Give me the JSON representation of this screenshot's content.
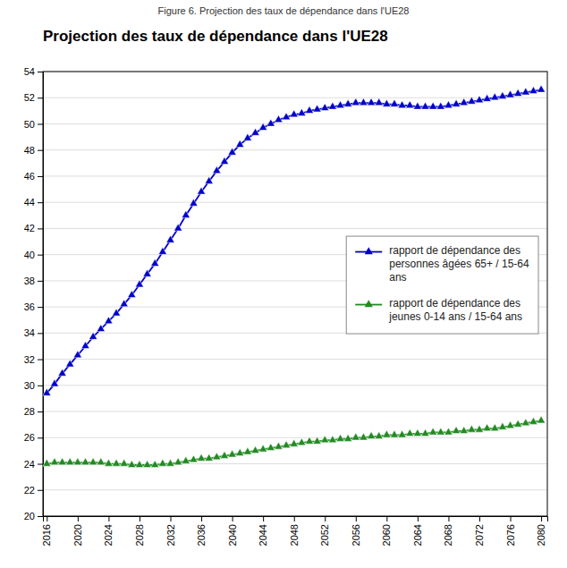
{
  "chart_data": {
    "type": "line",
    "title": "Projection des taux de dépendance dans l'UE28",
    "caption": "Figure 6. Projection des taux de dépendance dans l'UE28",
    "x": [
      2016,
      2017,
      2018,
      2019,
      2020,
      2021,
      2022,
      2023,
      2024,
      2025,
      2026,
      2027,
      2028,
      2029,
      2030,
      2031,
      2032,
      2033,
      2034,
      2035,
      2036,
      2037,
      2038,
      2039,
      2040,
      2041,
      2042,
      2043,
      2044,
      2045,
      2046,
      2047,
      2048,
      2049,
      2050,
      2051,
      2052,
      2053,
      2054,
      2055,
      2056,
      2057,
      2058,
      2059,
      2060,
      2061,
      2062,
      2063,
      2064,
      2065,
      2066,
      2067,
      2068,
      2069,
      2070,
      2071,
      2072,
      2073,
      2074,
      2075,
      2076,
      2077,
      2078,
      2079,
      2080
    ],
    "series": [
      {
        "name": "rapport de dépendance des\npersonnes âgées 65+ / 15-64\nans",
        "color": "#0000CC",
        "marker": "triangle",
        "values": [
          29.4,
          30.1,
          30.9,
          31.6,
          32.3,
          33.0,
          33.7,
          34.3,
          34.9,
          35.5,
          36.2,
          36.9,
          37.7,
          38.5,
          39.3,
          40.2,
          41.1,
          42.0,
          43.0,
          43.9,
          44.8,
          45.6,
          46.4,
          47.1,
          47.8,
          48.4,
          48.9,
          49.3,
          49.7,
          50.0,
          50.3,
          50.5,
          50.7,
          50.8,
          51.0,
          51.1,
          51.2,
          51.3,
          51.4,
          51.5,
          51.6,
          51.6,
          51.6,
          51.6,
          51.5,
          51.5,
          51.4,
          51.4,
          51.3,
          51.3,
          51.3,
          51.3,
          51.4,
          51.5,
          51.6,
          51.7,
          51.8,
          51.9,
          52.0,
          52.1,
          52.2,
          52.3,
          52.4,
          52.5,
          52.6
        ]
      },
      {
        "name": "rapport de dépendance des\njeunes 0-14 ans / 15-64 ans",
        "color": "#228B22",
        "marker": "triangle",
        "values": [
          24.0,
          24.1,
          24.1,
          24.1,
          24.1,
          24.1,
          24.1,
          24.1,
          24.0,
          24.0,
          24.0,
          23.9,
          23.9,
          23.9,
          23.9,
          24.0,
          24.0,
          24.1,
          24.2,
          24.3,
          24.4,
          24.4,
          24.5,
          24.6,
          24.7,
          24.8,
          24.9,
          25.0,
          25.1,
          25.2,
          25.3,
          25.4,
          25.5,
          25.6,
          25.7,
          25.7,
          25.8,
          25.8,
          25.9,
          25.9,
          26.0,
          26.0,
          26.1,
          26.1,
          26.2,
          26.2,
          26.2,
          26.3,
          26.3,
          26.3,
          26.4,
          26.4,
          26.4,
          26.5,
          26.5,
          26.6,
          26.6,
          26.7,
          26.7,
          26.8,
          26.9,
          27.0,
          27.1,
          27.2,
          27.3
        ]
      }
    ],
    "xlim": [
      2015.5,
      2080.8
    ],
    "xticks": [
      2016,
      2020,
      2024,
      2028,
      2032,
      2036,
      2040,
      2044,
      2048,
      2052,
      2056,
      2060,
      2064,
      2068,
      2072,
      2076,
      2080
    ],
    "ylim": [
      20,
      54
    ],
    "yticks": [
      20,
      22,
      24,
      26,
      28,
      30,
      32,
      34,
      36,
      38,
      40,
      42,
      44,
      46,
      48,
      50,
      52,
      54
    ],
    "grid": true,
    "legend": "right"
  }
}
